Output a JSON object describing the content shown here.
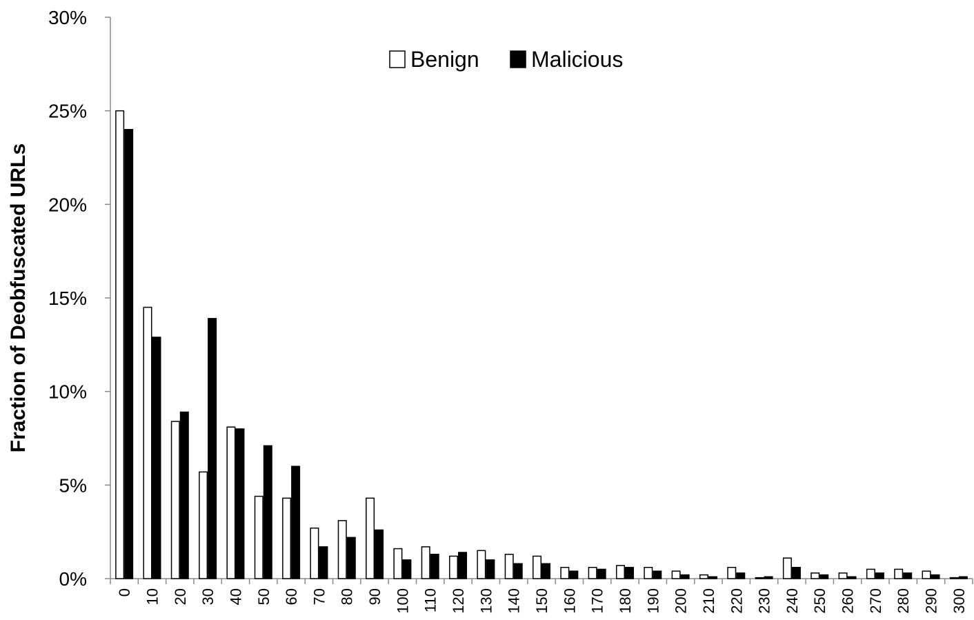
{
  "chart_data": {
    "type": "bar",
    "title": "",
    "xlabel": "",
    "ylabel": "Fraction of Deobfuscated URLs",
    "ylim": [
      0,
      30
    ],
    "y_ticks": [
      "0%",
      "5%",
      "10%",
      "15%",
      "20%",
      "25%",
      "30%"
    ],
    "y_tick_values": [
      0,
      5,
      10,
      15,
      20,
      25,
      30
    ],
    "categories": [
      "0",
      "10",
      "20",
      "30",
      "40",
      "50",
      "60",
      "70",
      "80",
      "90",
      "100",
      "110",
      "120",
      "130",
      "140",
      "150",
      "160",
      "170",
      "180",
      "190",
      "200",
      "210",
      "220",
      "230",
      "240",
      "250",
      "260",
      "270",
      "280",
      "290",
      "300"
    ],
    "series": [
      {
        "name": "Benign",
        "color": "#ffffff",
        "values": [
          25.0,
          14.5,
          8.4,
          5.7,
          8.1,
          4.4,
          4.3,
          2.7,
          3.1,
          4.3,
          1.6,
          1.7,
          1.2,
          1.5,
          1.3,
          1.2,
          0.6,
          0.6,
          0.7,
          0.6,
          0.4,
          0.2,
          0.6,
          0.05,
          1.1,
          0.3,
          0.3,
          0.5,
          0.5,
          0.4,
          0.05
        ]
      },
      {
        "name": "Malicious",
        "color": "#000000",
        "values": [
          24.0,
          12.9,
          8.9,
          13.9,
          8.0,
          7.1,
          6.0,
          1.7,
          2.2,
          2.6,
          1.0,
          1.3,
          1.4,
          1.0,
          0.8,
          0.8,
          0.4,
          0.5,
          0.6,
          0.4,
          0.2,
          0.1,
          0.3,
          0.1,
          0.6,
          0.2,
          0.1,
          0.3,
          0.3,
          0.2,
          0.1
        ]
      }
    ],
    "legend_position": "top-center",
    "grid": false
  }
}
